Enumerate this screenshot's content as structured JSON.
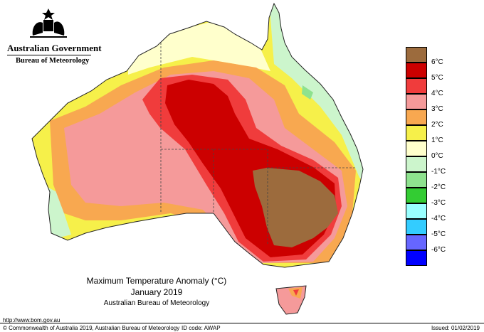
{
  "header": {
    "government": "Australian Government",
    "bureau": "Bureau of Meteorology"
  },
  "map": {
    "title": "Maximum Temperature Anomaly (°C)",
    "period": "January 2019",
    "source": "Australian Bureau of Meteorology"
  },
  "legend": {
    "items": [
      {
        "label": "6°C",
        "color": "#9c6b3d"
      },
      {
        "label": "5°C",
        "color": "#cc0000"
      },
      {
        "label": "4°C",
        "color": "#f03c3c"
      },
      {
        "label": "3°C",
        "color": "#f59a9a"
      },
      {
        "label": "2°C",
        "color": "#f8a850"
      },
      {
        "label": "1°C",
        "color": "#f6f04a"
      },
      {
        "label": "0°C",
        "color": "#ffffcc"
      },
      {
        "label": "-1°C",
        "color": "#ccf5cc"
      },
      {
        "label": "-2°C",
        "color": "#8ee28e"
      },
      {
        "label": "-3°C",
        "color": "#33cc33"
      },
      {
        "label": "-4°C",
        "color": "#99ffff"
      },
      {
        "label": "-5°C",
        "color": "#33ccff"
      },
      {
        "label": "-6°C",
        "color": "#6666ff"
      },
      {
        "label": "",
        "color": "#0000ff"
      }
    ]
  },
  "footer": {
    "url": "http://www.bom.gov.au",
    "copyright": "© Commonwealth of Australia 2019, Australian Bureau of Meteorology",
    "id_code": "ID code: AWAP",
    "issued": "Issued: 01/02/2019"
  }
}
